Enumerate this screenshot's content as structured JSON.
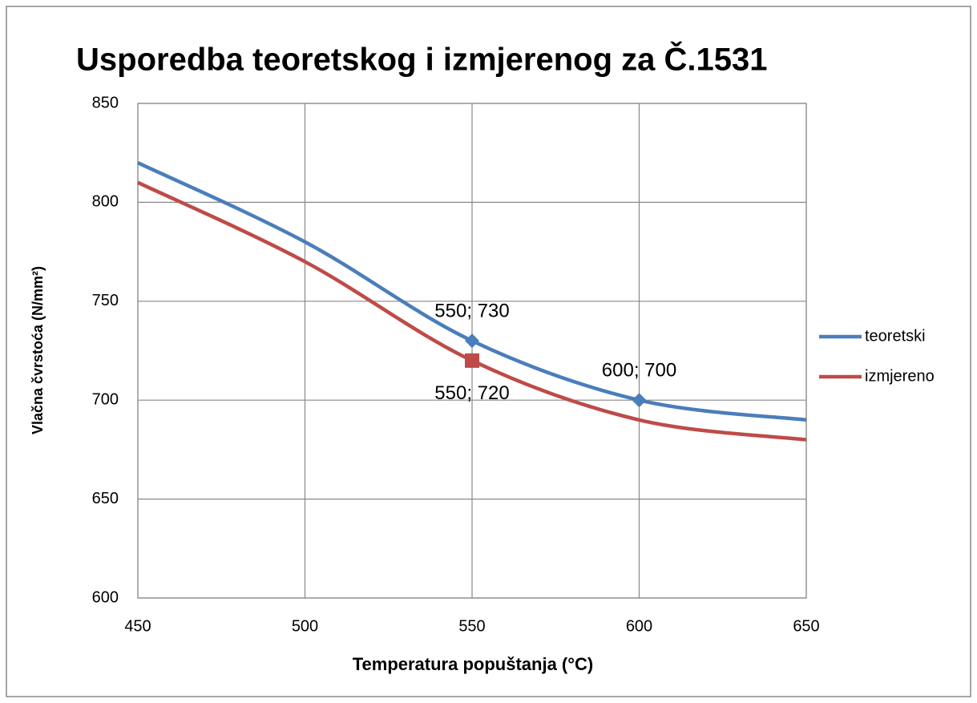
{
  "chart_data": {
    "type": "line",
    "title": "Usporedba teoretskog i izmjerenog za Č.1531",
    "xlabel": "Temperatura popuštanja (°C)",
    "ylabel": "Vlačna čvrstoća (N/mm²)",
    "x": [
      450,
      500,
      550,
      600,
      650
    ],
    "series": [
      {
        "name": "teoretski",
        "color": "#4a7ebb",
        "marker": "diamond",
        "values": [
          820,
          780,
          730,
          700,
          690
        ],
        "value_labels": [
          null,
          null,
          "550; 730",
          "600; 700",
          null
        ]
      },
      {
        "name": "izmjereno",
        "color": "#be4b48",
        "marker": "square",
        "values": [
          810,
          770,
          720,
          690,
          680
        ],
        "value_labels": [
          null,
          null,
          "550; 720",
          null,
          null
        ]
      }
    ],
    "xlim": [
      450,
      650
    ],
    "xticks": [
      450,
      500,
      550,
      600,
      650
    ],
    "ylim": [
      600,
      850
    ],
    "yticks": [
      600,
      650,
      700,
      750,
      800,
      850
    ],
    "grid": true,
    "smooth": true,
    "legend": "right"
  }
}
